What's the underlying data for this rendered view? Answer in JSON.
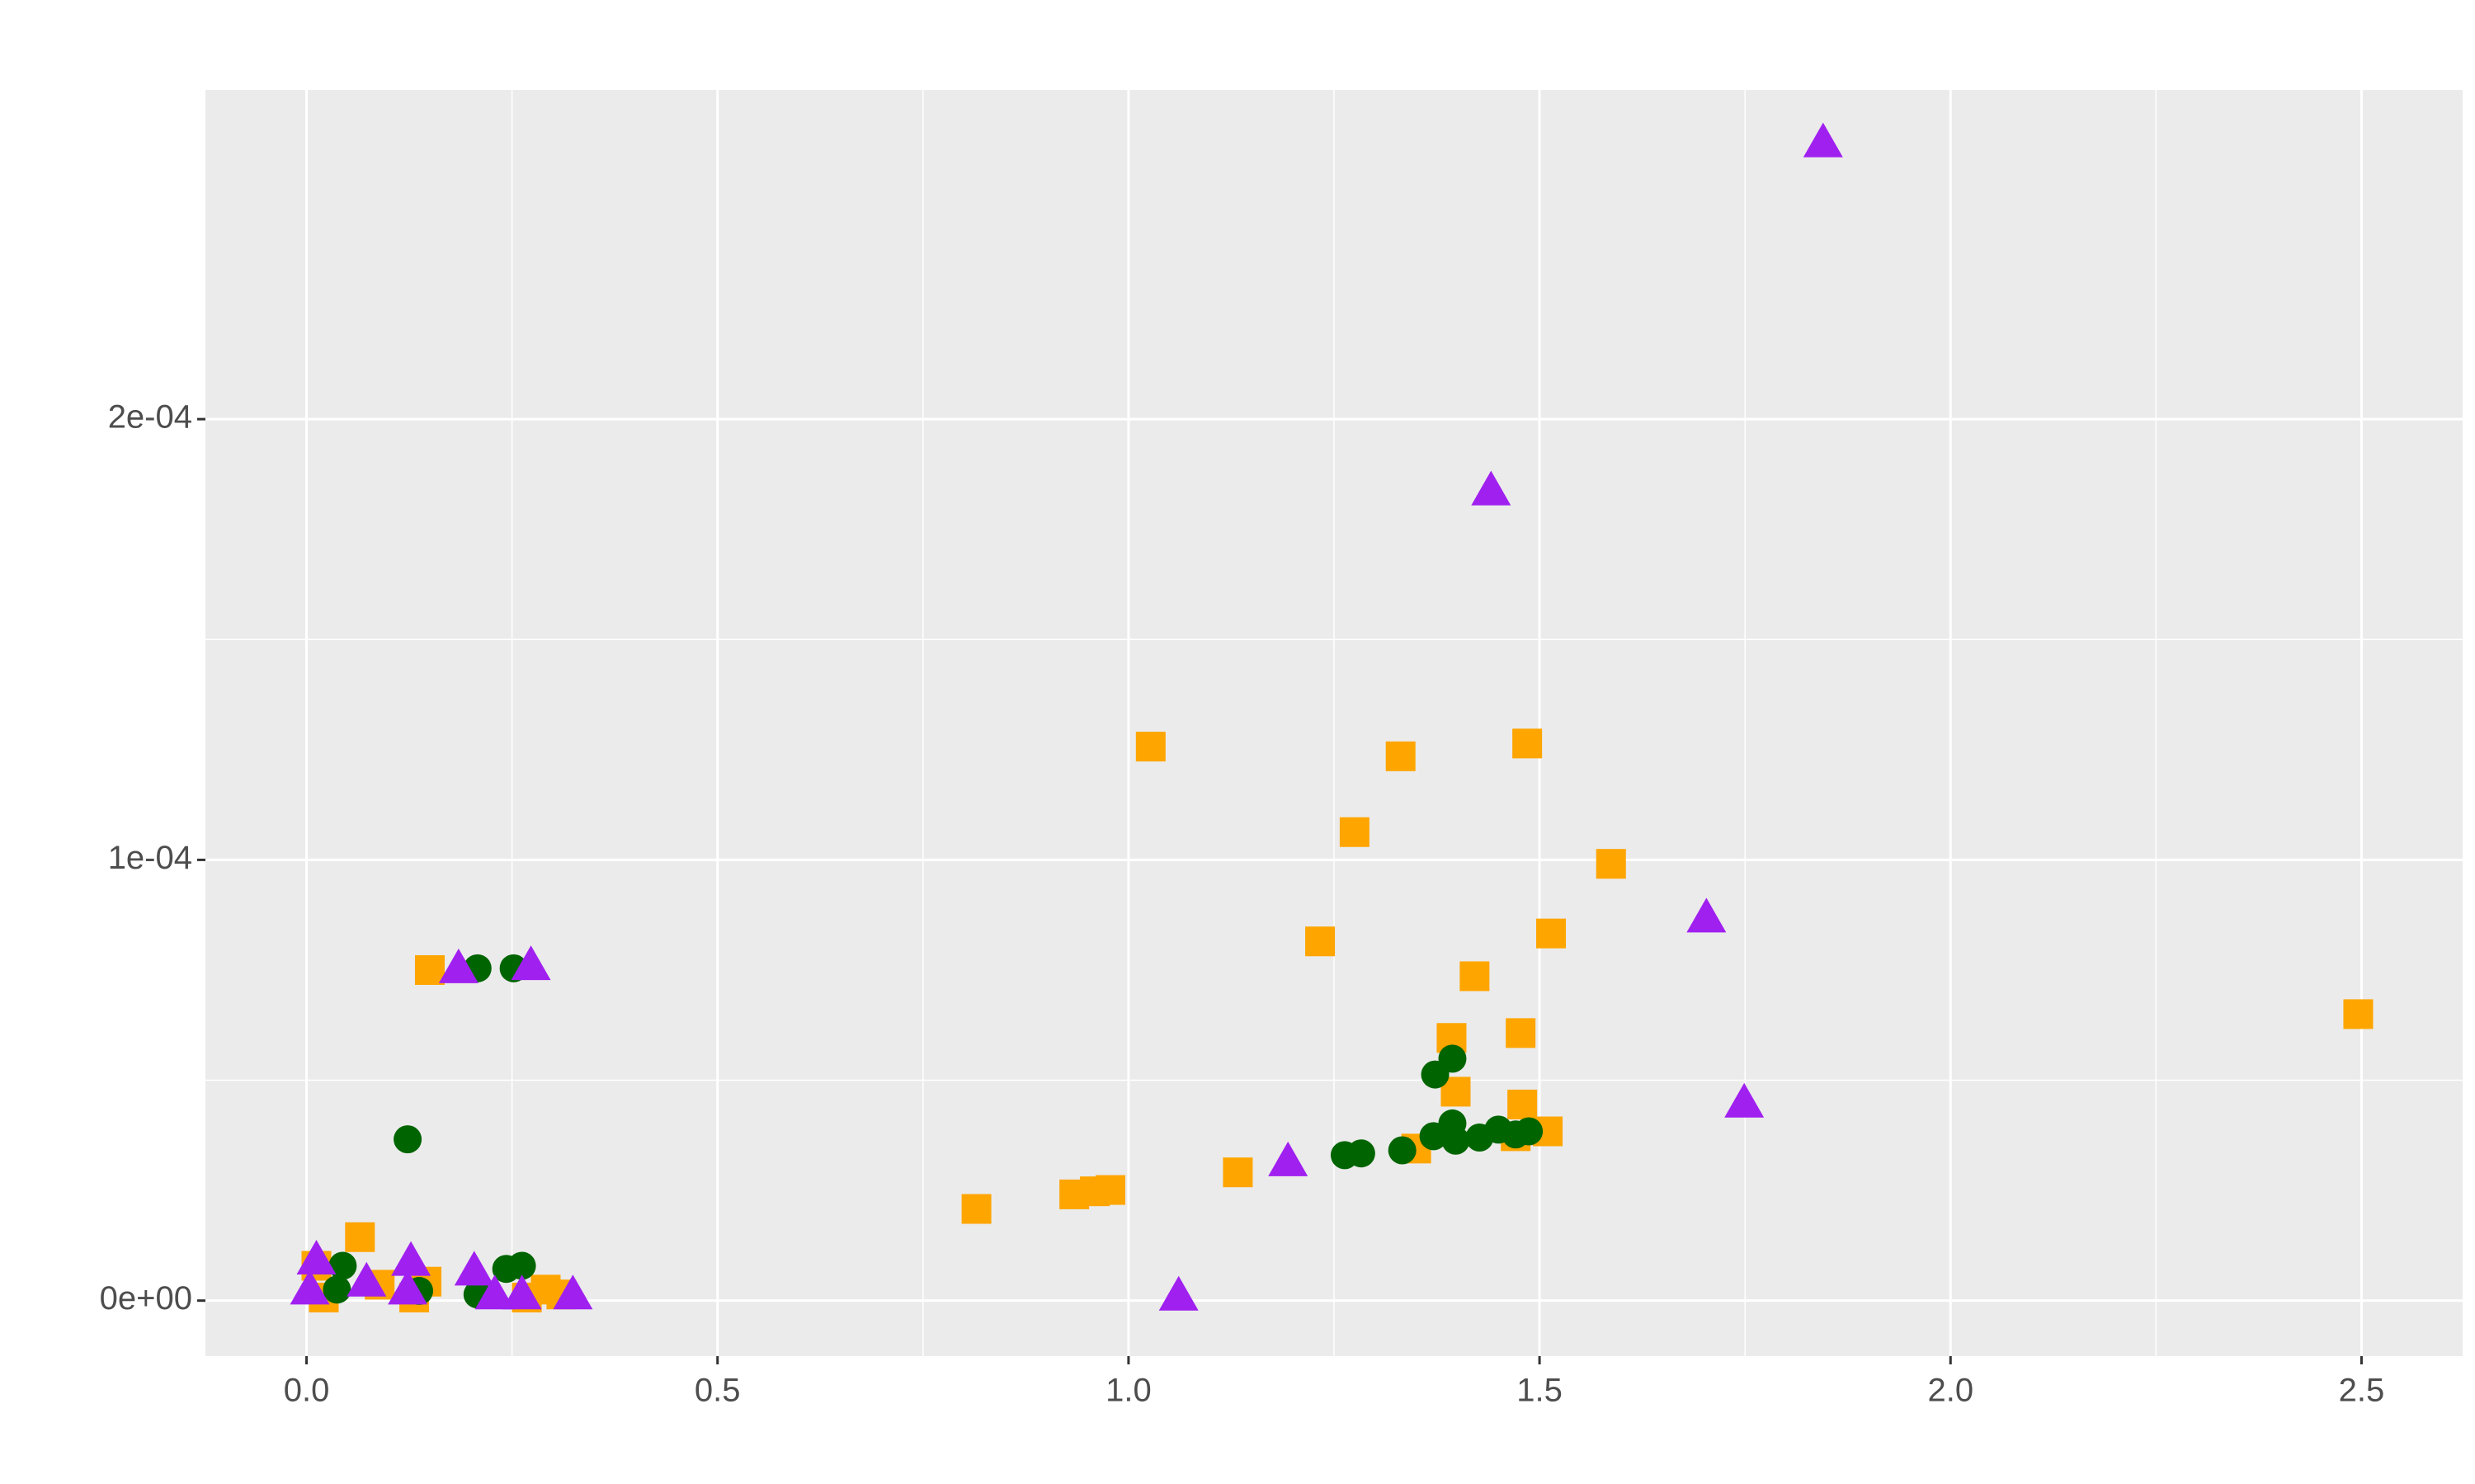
{
  "chart_data": {
    "type": "scatter",
    "xlim": [
      -0.123,
      2.623
    ],
    "ylim": [
      -1.26e-05,
      0.0002747
    ],
    "xticks": [
      {
        "value": 0,
        "label": "0.0"
      },
      0.5,
      {
        "value": 1,
        "label": "1.0"
      },
      1.5,
      {
        "value": 2,
        "label": "2.0"
      },
      2.5
    ],
    "yticks": [
      {
        "value": 0,
        "label": "0e+00"
      },
      {
        "value": 0.0001,
        "label": "1e-04"
      },
      {
        "value": 0.0002,
        "label": "2e-04"
      }
    ],
    "grid": true,
    "series": [
      {
        "color": "#ffa500",
        "shape": "square",
        "x": [
          1.027,
          1.331,
          1.485,
          1.275,
          1.587,
          1.233,
          1.514,
          1.421,
          1.393,
          1.477,
          1.398,
          1.479,
          1.51,
          1.471,
          2.496,
          1.133,
          0.815,
          0.934,
          0.959,
          0.978,
          1.35,
          0.15,
          0.065,
          0.012,
          0.021,
          0.089,
          0.146,
          0.131,
          0.268,
          0.291,
          0.31
        ],
        "values": [
          0.0001257,
          0.0001235,
          0.0001264,
          0.0001063,
          9.91e-05,
          8.15e-05,
          8.33e-05,
          7.36e-05,
          5.96e-05,
          6.07e-05,
          4.74e-05,
          4.45e-05,
          3.84e-05,
          3.73e-05,
          6.5e-05,
          2.91e-05,
          2.08e-05,
          2.41e-05,
          2.48e-05,
          2.51e-05,
          3.45e-05,
          7.5e-05,
          1.44e-05,
          7.9e-06,
          7e-07,
          3.6e-06,
          4.3e-06,
          7e-07,
          7e-07,
          2.5e-06,
          1.4e-06
        ]
      },
      {
        "color": "#006400",
        "shape": "circle",
        "x": [
          0.123,
          0.208,
          0.252,
          0.044,
          0.037,
          0.137,
          0.208,
          0.243,
          0.262,
          1.394,
          1.373,
          1.263,
          1.283,
          1.333,
          1.371,
          1.394,
          1.398,
          1.427,
          1.45,
          1.471,
          1.487
        ],
        "values": [
          3.66e-05,
          7.54e-05,
          7.54e-05,
          7.9e-06,
          2.5e-06,
          2.2e-06,
          1.4e-06,
          7.2e-06,
          7.9e-06,
          5.49e-05,
          5.13e-05,
          3.3e-05,
          3.34e-05,
          3.41e-05,
          3.73e-05,
          4.02e-05,
          3.63e-05,
          3.7e-05,
          3.88e-05,
          3.77e-05,
          3.84e-05
        ]
      },
      {
        "color": "#a020f0",
        "shape": "triangle",
        "x": [
          1.845,
          1.441,
          1.703,
          1.749,
          1.194,
          1.061,
          0.185,
          0.273,
          0.012,
          0.004,
          0.073,
          0.127,
          0.123,
          0.204,
          0.229,
          0.262,
          0.324
        ],
        "values": [
          0.0002628,
          0.0001838,
          8.69e-05,
          4.49e-05,
          3.16e-05,
          1.1e-06,
          7.54e-05,
          7.61e-05,
          9.3e-06,
          2.5e-06,
          4.3e-06,
          9e-06,
          2.5e-06,
          6.8e-06,
          1.4e-06,
          1.4e-06,
          1.4e-06
        ]
      }
    ]
  }
}
